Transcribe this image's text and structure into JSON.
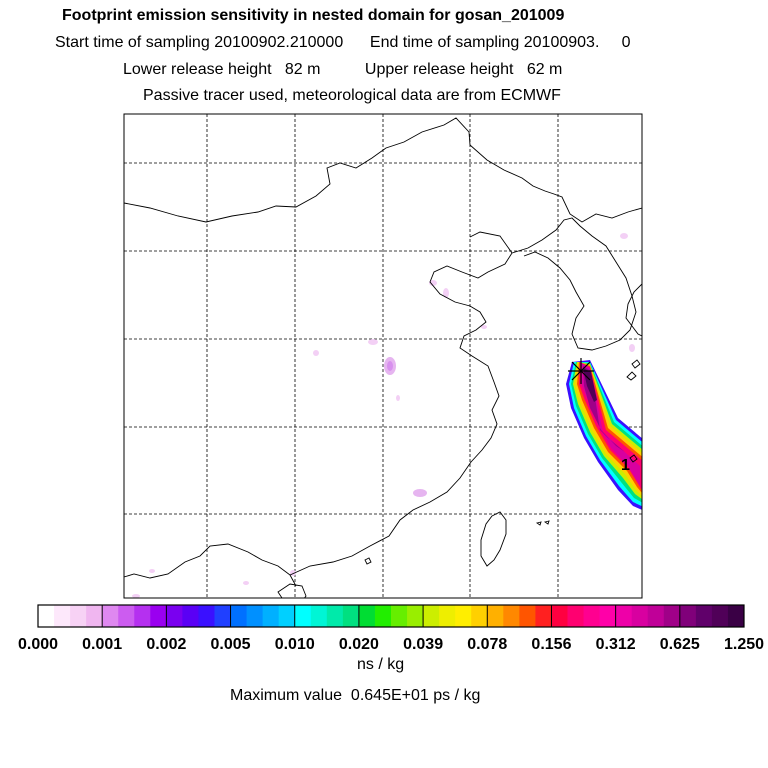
{
  "header": {
    "title": "Footprint emission sensitivity in nested domain for gosan_201009",
    "start_label": "Start time of sampling",
    "start_value": "20100902.210000",
    "end_label": "End time of sampling",
    "end_value": "20100903.     0",
    "lower_label": "Lower release height",
    "lower_value": "82 m",
    "upper_label": "Upper release height",
    "upper_value": "62 m",
    "tracer_note": "Passive tracer used, meteorological data are from ECMWF"
  },
  "map": {
    "marker_label": "1",
    "release_site_symbol": "star-cross"
  },
  "legend": {
    "ticks": [
      "0.000",
      "0.001",
      "0.002",
      "0.005",
      "0.010",
      "0.020",
      "0.039",
      "0.078",
      "0.156",
      "0.312",
      "0.625",
      "1.250"
    ],
    "units": "ns / kg",
    "max_label": "Maximum value",
    "max_value": "0.645E+01 ps / kg",
    "colors": [
      "#ffffff",
      "#fde8fb",
      "#f7d2f5",
      "#f0b6f0",
      "#df88f0",
      "#cc5cf0",
      "#b530f0",
      "#9a00f0",
      "#7a00f0",
      "#5a00f5",
      "#3a10ff",
      "#2040ff",
      "#0070ff",
      "#0090ff",
      "#00b0ff",
      "#00d0ff",
      "#00ffff",
      "#00f5d5",
      "#00eaaa",
      "#00e080",
      "#00dd33",
      "#22ee00",
      "#66ee00",
      "#99ee00",
      "#ccee00",
      "#eeee00",
      "#ffee00",
      "#ffd000",
      "#ffb000",
      "#ff8800",
      "#ff5500",
      "#ff2020",
      "#ff0040",
      "#ff0070",
      "#ff0090",
      "#ff00a8",
      "#ee00a8",
      "#d800a0",
      "#c00098",
      "#a00088",
      "#80007a",
      "#60006a",
      "#500058",
      "#3a0045"
    ]
  }
}
